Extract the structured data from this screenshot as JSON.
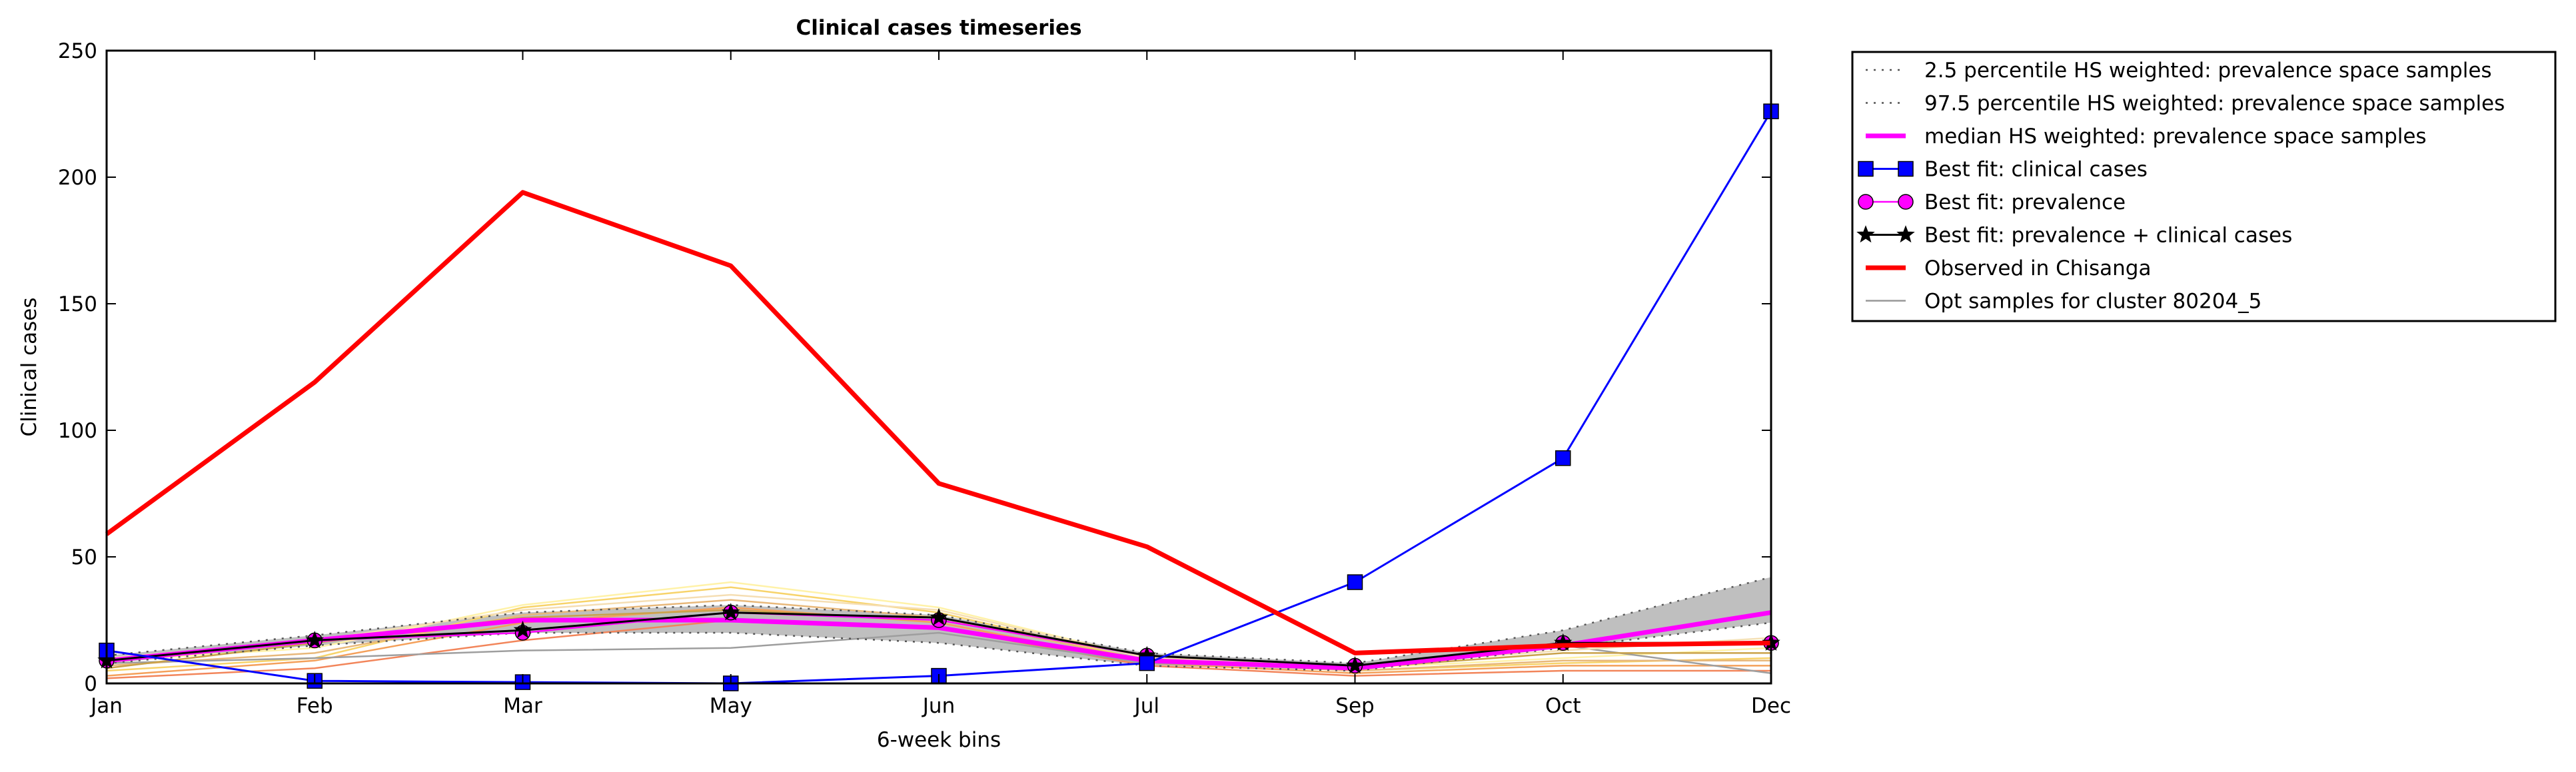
{
  "chart_data": {
    "type": "line",
    "title": "Clinical cases timeseries",
    "xlabel": "6-week bins",
    "ylabel": "Clinical cases",
    "categories": [
      "Jan",
      "Feb",
      "Mar",
      "May",
      "Jun",
      "Jul",
      "Sep",
      "Oct",
      "Dec"
    ],
    "ylim": [
      0,
      250
    ],
    "yticks": [
      0,
      50,
      100,
      150,
      200,
      250
    ],
    "grid": false,
    "legend_position": "outside-top-right",
    "band": {
      "lower": [
        8,
        15,
        20,
        20,
        16,
        7,
        5,
        14,
        24
      ],
      "upper": [
        11,
        19,
        28,
        31,
        27,
        12,
        8,
        21,
        42
      ],
      "color": "#b4b4b4"
    },
    "sample_lines": [
      {
        "color": "#f7d36a",
        "values": [
          5,
          10,
          30,
          38,
          28,
          9,
          5,
          8,
          10
        ]
      },
      {
        "color": "#fff2a8",
        "values": [
          9,
          14,
          31,
          40,
          30,
          10,
          6,
          10,
          14
        ]
      },
      {
        "color": "#f4a05a",
        "values": [
          3,
          9,
          24,
          30,
          24,
          8,
          4,
          7,
          7
        ]
      },
      {
        "color": "#f2855a",
        "values": [
          2,
          6,
          17,
          25,
          22,
          7,
          3,
          5,
          5
        ]
      },
      {
        "color": "#e8b87a",
        "values": [
          7,
          12,
          27,
          33,
          26,
          9,
          5,
          9,
          9
        ]
      },
      {
        "color": "#9e9e9e",
        "values": [
          8,
          10,
          13,
          14,
          20,
          8,
          6,
          15,
          4
        ]
      },
      {
        "color": "#c9a24a",
        "values": [
          6,
          16,
          26,
          29,
          25,
          11,
          6,
          12,
          12
        ]
      },
      {
        "color": "#f5deb3",
        "values": [
          10,
          17,
          29,
          35,
          29,
          10,
          7,
          13,
          18
        ]
      }
    ],
    "series": [
      {
        "name": "2.5 percentile HS weighted: prevalence space samples",
        "color": "#555555",
        "style": "dotted",
        "marker": "none",
        "values": [
          8,
          15,
          20,
          20,
          16,
          7,
          5,
          14,
          24
        ]
      },
      {
        "name": "97.5 percentile HS weighted: prevalence space samples",
        "color": "#555555",
        "style": "dotted",
        "marker": "none",
        "values": [
          11,
          19,
          28,
          31,
          27,
          12,
          8,
          21,
          42
        ]
      },
      {
        "name": "median HS weighted: prevalence space samples",
        "color": "#ff00ff",
        "style": "solid",
        "marker": "none",
        "values": [
          9,
          17,
          25,
          25,
          22,
          9,
          6,
          15,
          28
        ]
      },
      {
        "name": "Best fit: clinical cases",
        "color": "#0000ff",
        "style": "solid",
        "marker": "square",
        "values": [
          13,
          1,
          0.5,
          0,
          3,
          8,
          40,
          89,
          226
        ]
      },
      {
        "name": "Best fit: prevalence",
        "color": "#ff00ff",
        "style": "solid",
        "marker": "circle",
        "values": [
          9,
          17,
          20,
          28,
          25,
          11,
          7,
          16,
          16
        ]
      },
      {
        "name": "Best fit: prevalence + clinical cases",
        "color": "#000000",
        "style": "solid",
        "marker": "star",
        "values": [
          9,
          17,
          21,
          28,
          26,
          11,
          7,
          16,
          16
        ]
      },
      {
        "name": "Observed in Chisanga",
        "color": "#ff0000",
        "style": "solid",
        "marker": "none",
        "values": [
          59,
          119,
          194,
          165,
          79,
          54,
          12,
          15,
          16
        ]
      },
      {
        "name": "Opt samples for cluster 80204_5",
        "color": "#999999",
        "style": "solid",
        "marker": "none",
        "values": null
      }
    ]
  }
}
